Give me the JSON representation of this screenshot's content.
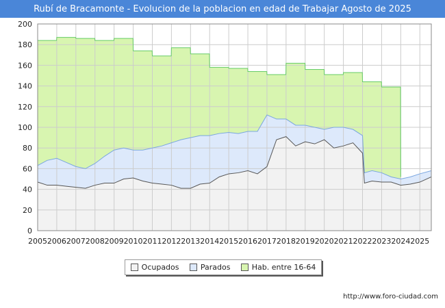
{
  "chart_data": {
    "type": "area",
    "title": "Rubí de Bracamonte - Evolucion de la poblacion en edad de Trabajar Agosto de 2025",
    "xlabel": "",
    "ylabel": "",
    "ylim": [
      0,
      200
    ],
    "xlim": [
      2005,
      2025.6
    ],
    "yticks": [
      0,
      20,
      40,
      60,
      80,
      100,
      120,
      140,
      160,
      180,
      200
    ],
    "xticks": [
      "2005",
      "2006",
      "2007",
      "2008",
      "2009",
      "2010",
      "2011",
      "2012",
      "2013",
      "2014",
      "2015",
      "2016",
      "2017",
      "2018",
      "2019",
      "2020",
      "2021",
      "2022",
      "2023",
      "2024",
      "2025"
    ],
    "grid": true,
    "legend_position": "bottom",
    "series": [
      {
        "name": "Ocupados",
        "color": "#f2f2f2",
        "stroke": "#555555",
        "x": [
          2005,
          2005.5,
          2006,
          2006.5,
          2007,
          2007.5,
          2008,
          2008.5,
          2009,
          2009.5,
          2010,
          2010.5,
          2011,
          2011.5,
          2012,
          2012.5,
          2013,
          2013.5,
          2014,
          2014.5,
          2015,
          2015.5,
          2016,
          2016.5,
          2017,
          2017.5,
          2018,
          2018.5,
          2019,
          2019.5,
          2020,
          2020.5,
          2021,
          2021.5,
          2022,
          2022.1,
          2022.5,
          2023,
          2023.5,
          2024,
          2024.5,
          2025,
          2025.6
        ],
        "values": [
          47,
          44,
          44,
          43,
          42,
          41,
          44,
          46,
          46,
          50,
          51,
          48,
          46,
          45,
          44,
          41,
          41,
          45,
          46,
          52,
          55,
          56,
          58,
          55,
          62,
          88,
          91,
          82,
          86,
          84,
          88,
          80,
          82,
          85,
          75,
          46,
          48,
          47,
          47,
          44,
          45,
          47,
          52
        ]
      },
      {
        "name": "Parados",
        "color": "#dde9fb",
        "stroke": "#7aa6e0",
        "x": [
          2005,
          2005.5,
          2006,
          2006.5,
          2007,
          2007.5,
          2008,
          2008.5,
          2009,
          2009.5,
          2010,
          2010.5,
          2011,
          2011.5,
          2012,
          2012.5,
          2013,
          2013.5,
          2014,
          2014.5,
          2015,
          2015.5,
          2016,
          2016.5,
          2017,
          2017.5,
          2018,
          2018.5,
          2019,
          2019.5,
          2020,
          2020.5,
          2021,
          2021.5,
          2022,
          2022.1,
          2022.5,
          2023,
          2023.5,
          2024,
          2024.5,
          2025,
          2025.6
        ],
        "values": [
          63,
          68,
          70,
          66,
          62,
          60,
          65,
          72,
          78,
          80,
          78,
          78,
          80,
          82,
          85,
          88,
          90,
          92,
          92,
          94,
          95,
          94,
          96,
          96,
          112,
          108,
          108,
          102,
          102,
          100,
          98,
          100,
          100,
          98,
          92,
          56,
          58,
          56,
          52,
          50,
          52,
          55,
          58
        ]
      },
      {
        "name": "Hab. entre 16-64",
        "color": "#d8f5b0",
        "stroke": "#66cc66",
        "x": [
          2005,
          2005.99,
          2006,
          2006.99,
          2007,
          2007.99,
          2008,
          2008.99,
          2009,
          2009.99,
          2010,
          2010.99,
          2011,
          2011.99,
          2012,
          2012.99,
          2013,
          2013.99,
          2014,
          2014.99,
          2015,
          2015.99,
          2016,
          2016.99,
          2017,
          2017.99,
          2018,
          2018.99,
          2019,
          2019.99,
          2020,
          2020.99,
          2021,
          2021.99,
          2022,
          2022.99,
          2023,
          2023.99,
          2024
        ],
        "values": [
          184,
          184,
          187,
          187,
          186,
          186,
          184,
          184,
          186,
          186,
          174,
          174,
          169,
          169,
          177,
          177,
          171,
          171,
          158,
          158,
          157,
          157,
          154,
          154,
          151,
          151,
          162,
          162,
          156,
          156,
          151,
          151,
          153,
          153,
          144,
          144,
          139,
          139,
          52
        ]
      }
    ]
  },
  "legend": {
    "items": [
      {
        "label": "Ocupados",
        "color": "#f2f2f2"
      },
      {
        "label": "Parados",
        "color": "#dde9fb"
      },
      {
        "label": "Hab. entre 16-64",
        "color": "#d8f5b0"
      }
    ]
  },
  "footer": {
    "url": "http://www.foro-ciudad.com"
  }
}
